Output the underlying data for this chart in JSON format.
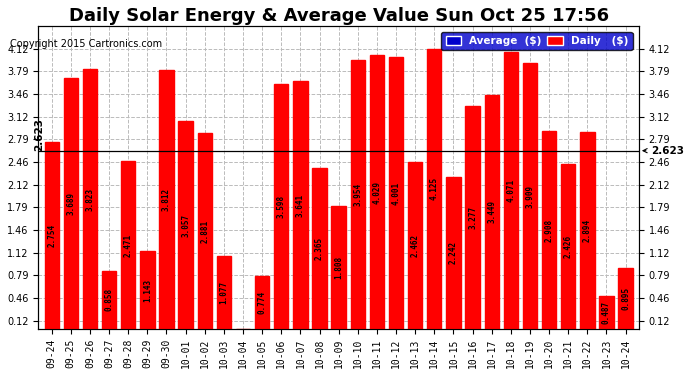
{
  "title": "Daily Solar Energy & Average Value Sun Oct 25 17:56",
  "copyright": "Copyright 2015 Cartronics.com",
  "average_value": 2.623,
  "bar_color": "#FF0000",
  "average_line_color": "#000000",
  "background_color": "#FFFFFF",
  "plot_bg_color": "#FFFFFF",
  "grid_color": "#BBBBBB",
  "categories": [
    "09-24",
    "09-25",
    "09-26",
    "09-27",
    "09-28",
    "09-29",
    "09-30",
    "10-01",
    "10-02",
    "10-03",
    "10-04",
    "10-05",
    "10-06",
    "10-07",
    "10-08",
    "10-09",
    "10-10",
    "10-11",
    "10-12",
    "10-13",
    "10-14",
    "10-15",
    "10-16",
    "10-17",
    "10-18",
    "10-19",
    "10-20",
    "10-21",
    "10-22",
    "10-23",
    "10-24"
  ],
  "values": [
    2.754,
    3.689,
    3.823,
    0.858,
    2.471,
    1.143,
    3.812,
    3.057,
    2.881,
    1.077,
    0.0,
    0.774,
    3.598,
    3.641,
    2.365,
    1.808,
    3.954,
    4.029,
    4.001,
    2.462,
    4.125,
    2.242,
    3.277,
    3.449,
    4.071,
    3.909,
    2.908,
    2.426,
    2.894,
    0.487,
    0.895
  ],
  "ylim_min": 0.0,
  "ylim_max": 4.45,
  "yticks": [
    0.12,
    0.46,
    0.79,
    1.12,
    1.46,
    1.79,
    2.12,
    2.46,
    2.79,
    3.12,
    3.46,
    3.79,
    4.12
  ],
  "legend_avg_color": "#0000CC",
  "legend_daily_color": "#FF0000",
  "title_fontsize": 13,
  "tick_fontsize": 7.0,
  "value_fontsize": 5.5,
  "avg_label": "2.623"
}
